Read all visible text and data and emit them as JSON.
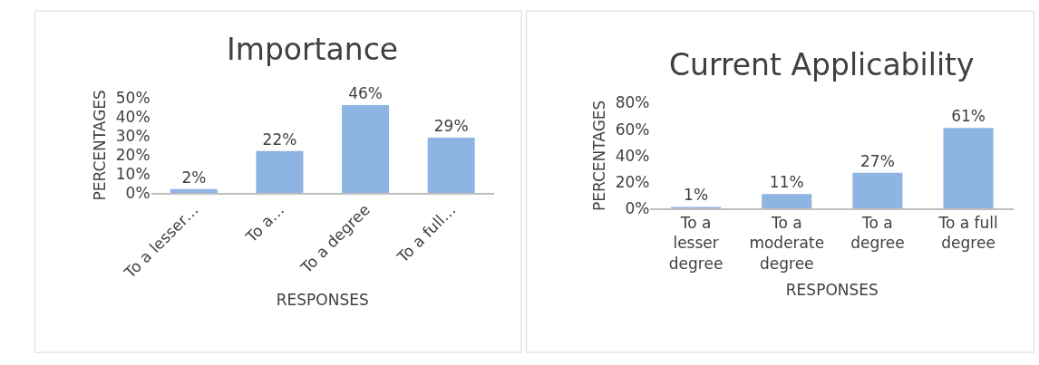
{
  "chart_data": [
    {
      "type": "bar",
      "title": "Importance",
      "xlabel": "RESPONSES",
      "ylabel": "PERCENTAGES",
      "categories": [
        "To a lesser…",
        "To a…",
        "To a degree",
        "To a full…"
      ],
      "values": [
        2,
        22,
        46,
        29
      ],
      "value_labels": [
        "2%",
        "22%",
        "46%",
        "29%"
      ],
      "color": "#8db4e2",
      "ylim": [
        0,
        50
      ],
      "yticks": [
        {
          "value": 0,
          "label": "0%"
        },
        {
          "value": 10,
          "label": "10%"
        },
        {
          "value": 20,
          "label": "20%"
        },
        {
          "value": 30,
          "label": "30%"
        },
        {
          "value": 40,
          "label": "40%"
        },
        {
          "value": 50,
          "label": "50%"
        }
      ],
      "grid": false
    },
    {
      "type": "bar",
      "title": "Current Applicability",
      "xlabel": "RESPONSES",
      "ylabel": "PERCENTAGES",
      "categories": [
        "To a lesser degree",
        "To a moderate degree",
        "To a degree",
        "To a full degree"
      ],
      "values": [
        1,
        11,
        27,
        61
      ],
      "value_labels": [
        "1%",
        "11%",
        "27%",
        "61%"
      ],
      "color": "#8db4e2",
      "ylim": [
        0,
        80
      ],
      "yticks": [
        {
          "value": 0,
          "label": "0%"
        },
        {
          "value": 20,
          "label": "20%"
        },
        {
          "value": 40,
          "label": "40%"
        },
        {
          "value": 60,
          "label": "60%"
        },
        {
          "value": 80,
          "label": "80%"
        }
      ],
      "grid": false
    }
  ]
}
